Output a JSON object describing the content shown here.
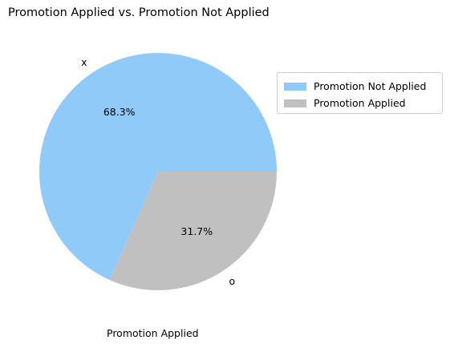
{
  "chart_data": {
    "type": "pie",
    "title": "Promotion Applied vs. Promotion Not Applied",
    "xlabel": "Promotion Applied",
    "ylabel": "",
    "slices": [
      {
        "label": "x",
        "legend": "Promotion Not Applied",
        "value": 68.3,
        "pct_label": "68.3%",
        "color": "#90CAF9"
      },
      {
        "label": "o",
        "legend": "Promotion Applied",
        "value": 31.7,
        "pct_label": "31.7%",
        "color": "#C0C0C0"
      }
    ],
    "start_angle_deg": 0,
    "direction": "counterclockwise",
    "legend_position": "upper-right, outside the pie"
  }
}
